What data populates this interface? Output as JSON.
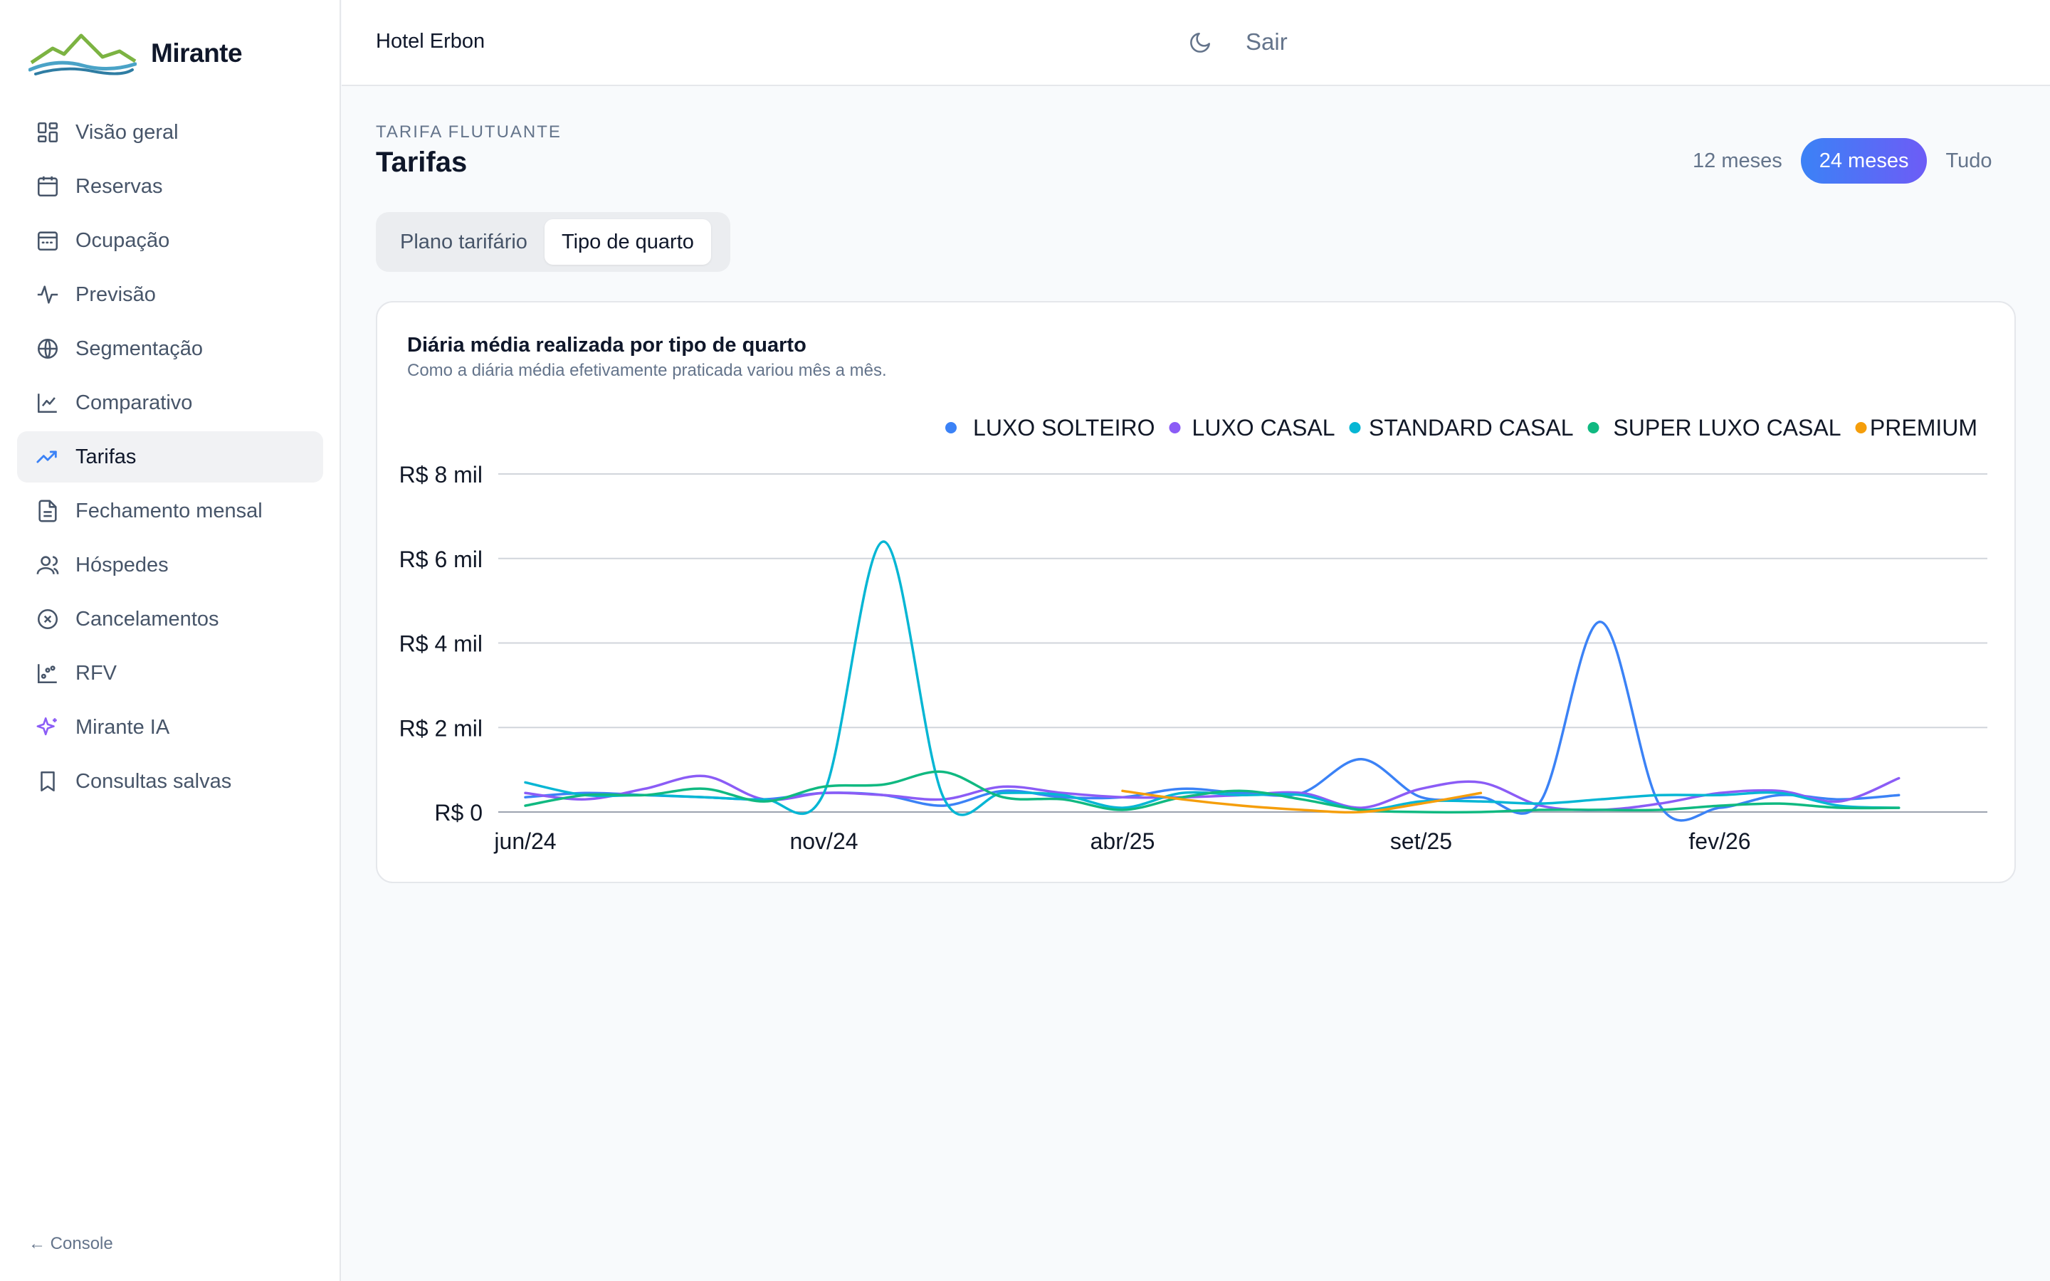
{
  "brand": {
    "name": "Mirante"
  },
  "sidebar": {
    "items": [
      {
        "label": "Visão geral",
        "icon": "grid-icon",
        "active": false
      },
      {
        "label": "Reservas",
        "icon": "calendar-icon",
        "active": false
      },
      {
        "label": "Ocupação",
        "icon": "calendar-grid-icon",
        "active": false
      },
      {
        "label": "Previsão",
        "icon": "pulse-icon",
        "active": false
      },
      {
        "label": "Segmentação",
        "icon": "globe-icon",
        "active": false
      },
      {
        "label": "Comparativo",
        "icon": "line-chart-icon",
        "active": false
      },
      {
        "label": "Tarifas",
        "icon": "trend-up-icon",
        "active": true
      },
      {
        "label": "Fechamento mensal",
        "icon": "file-icon",
        "active": false
      },
      {
        "label": "Hóspedes",
        "icon": "users-icon",
        "active": false
      },
      {
        "label": "Cancelamentos",
        "icon": "x-circle-icon",
        "active": false
      },
      {
        "label": "RFV",
        "icon": "scatter-icon",
        "active": false
      },
      {
        "label": "Mirante IA",
        "icon": "sparkles-icon",
        "active": false
      },
      {
        "label": "Consultas salvas",
        "icon": "bookmark-icon",
        "active": false
      }
    ],
    "console_link": "← Console"
  },
  "header": {
    "hotel": "Hotel Erbon",
    "theme_icon": "moon-icon",
    "logout": "Sair"
  },
  "page": {
    "eyebrow": "TARIFA FLUTUANTE",
    "title": "Tarifas",
    "ranges": [
      {
        "label": "12 meses",
        "active": false
      },
      {
        "label": "24 meses",
        "active": true
      },
      {
        "label": "Tudo",
        "active": false
      }
    ],
    "tabs": [
      {
        "label": "Plano tarifário",
        "active": false
      },
      {
        "label": "Tipo de quarto",
        "active": true
      }
    ]
  },
  "card": {
    "title": "Diária média realizada por tipo de quarto",
    "subtitle": "Como a diária média efetivamente praticada variou mês a mês."
  },
  "colors": {
    "accent": "#3b82f6",
    "accent_2": "#6d5cf6"
  },
  "chart_data": {
    "type": "line",
    "x": [
      "jun/24",
      "jul/24",
      "ago/24",
      "set/24",
      "out/24",
      "nov/24",
      "dez/24",
      "jan/25",
      "fev/25",
      "mar/25",
      "abr/25",
      "mai/25",
      "jun/25",
      "jul/25",
      "ago/25",
      "set/25",
      "out/25",
      "nov/25",
      "dez/25",
      "jan/26",
      "fev/26",
      "mar/26",
      "abr/26",
      "mai/26"
    ],
    "x_ticks": [
      "jun/24",
      "nov/24",
      "abr/25",
      "set/25",
      "fev/26"
    ],
    "y_ticks": [
      {
        "value": 0,
        "label": "R$ 0"
      },
      {
        "value": 2000,
        "label": "R$ 2 mil"
      },
      {
        "value": 4000,
        "label": "R$ 4 mil"
      },
      {
        "value": 6000,
        "label": "R$ 6 mil"
      },
      {
        "value": 8000,
        "label": "R$ 8 mil"
      }
    ],
    "ylim": [
      0,
      8000
    ],
    "grid": true,
    "legend_position": "top-right",
    "series": [
      {
        "name": "LUXO SOLTEIRO",
        "color": "#3b82f6",
        "values": [
          350,
          450,
          400,
          350,
          300,
          450,
          400,
          150,
          500,
          350,
          350,
          550,
          450,
          450,
          1250,
          350,
          350,
          250,
          4500,
          150,
          100,
          400,
          300,
          400
        ]
      },
      {
        "name": "LUXO CASAL",
        "color": "#8b5cf6",
        "values": [
          450,
          300,
          550,
          850,
          300,
          450,
          400,
          300,
          600,
          450,
          350,
          350,
          400,
          450,
          100,
          550,
          700,
          150,
          50,
          200,
          450,
          500,
          250,
          800
        ]
      },
      {
        "name": "STANDARD CASAL",
        "color": "#06b6d4",
        "values": [
          700,
          400,
          400,
          350,
          300,
          450,
          6400,
          350,
          450,
          400,
          100,
          450,
          400,
          400,
          50,
          250,
          250,
          200,
          300,
          400,
          400,
          450,
          150,
          100
        ]
      },
      {
        "name": "SUPER LUXO CASAL",
        "color": "#10b981",
        "values": [
          150,
          400,
          400,
          550,
          250,
          600,
          650,
          950,
          350,
          300,
          50,
          350,
          500,
          300,
          50,
          0,
          0,
          50,
          50,
          50,
          150,
          200,
          100,
          100
        ]
      },
      {
        "name": "PREMIUM",
        "color": "#f59e0b",
        "values": [
          null,
          null,
          null,
          null,
          null,
          null,
          null,
          null,
          null,
          null,
          500,
          300,
          150,
          50,
          0,
          200,
          450,
          null,
          null,
          null,
          null,
          null,
          null,
          null
        ]
      }
    ]
  }
}
